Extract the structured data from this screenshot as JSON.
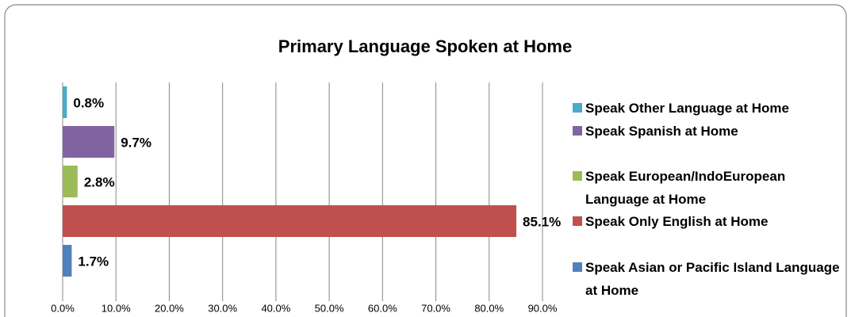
{
  "chart_data": {
    "type": "bar",
    "orientation": "horizontal",
    "title": "Primary Language Spoken at Home",
    "series": [
      {
        "name": "Speak Other Language at Home",
        "color": "#4bacc6",
        "values": [
          0.8
        ],
        "value_labels": [
          "0.8%"
        ]
      },
      {
        "name": "Speak Spanish at Home",
        "color": "#8064a2",
        "values": [
          9.7
        ],
        "value_labels": [
          "9.7%"
        ]
      },
      {
        "name": "Speak European/IndoEuropean Language at Home",
        "color": "#9bbb59",
        "values": [
          2.8
        ],
        "value_labels": [
          "2.8%"
        ]
      },
      {
        "name": "Speak Only English at Home",
        "color": "#c0504d",
        "values": [
          85.1
        ],
        "value_labels": [
          "85.1%"
        ]
      },
      {
        "name": "Speak Asian or Pacific Island Language at Home",
        "color": "#4f81bd",
        "values": [
          1.7
        ],
        "value_labels": [
          "1.7%"
        ]
      }
    ],
    "xlim": [
      0,
      90
    ],
    "xticks": [
      {
        "value": 0,
        "label": "0.0%"
      },
      {
        "value": 10,
        "label": "10.0%"
      },
      {
        "value": 20,
        "label": "20.0%"
      },
      {
        "value": 30,
        "label": "30.0%"
      },
      {
        "value": 40,
        "label": "40.0%"
      },
      {
        "value": 50,
        "label": "50.0%"
      },
      {
        "value": 60,
        "label": "60.0%"
      },
      {
        "value": 70,
        "label": "70.0%"
      },
      {
        "value": 80,
        "label": "80.0%"
      },
      {
        "value": 90,
        "label": "90.0%"
      }
    ],
    "grid": true,
    "legend": "right"
  }
}
